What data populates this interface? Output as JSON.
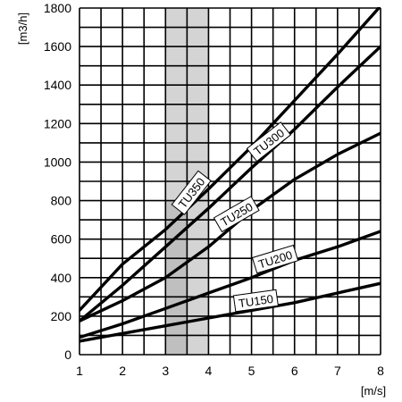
{
  "chart_data": {
    "type": "line",
    "title": "",
    "xlabel": "[m/s]",
    "ylabel": "[m3/h]",
    "xlim": [
      1,
      8
    ],
    "ylim": [
      0,
      1800
    ],
    "x_ticks": [
      "1",
      "2",
      "3",
      "4",
      "5",
      "6",
      "7",
      "8"
    ],
    "y_ticks": [
      "0",
      "200",
      "400",
      "600",
      "800",
      "1000",
      "1200",
      "1400",
      "1600",
      "1800"
    ],
    "grid": true,
    "highlight_band": {
      "from": 3,
      "to": 4,
      "split": 3.5
    },
    "series": [
      {
        "name": "TU350",
        "x": [
          1,
          2,
          3,
          4,
          5,
          6,
          7,
          8
        ],
        "y": [
          230,
          470,
          650,
          860,
          1080,
          1320,
          1560,
          1810
        ]
      },
      {
        "name": "TU300",
        "x": [
          1,
          2,
          3,
          4,
          5,
          6,
          7,
          8
        ],
        "y": [
          175,
          360,
          560,
          760,
          970,
          1170,
          1390,
          1600
        ]
      },
      {
        "name": "TU250",
        "x": [
          1,
          2,
          3,
          4,
          5,
          6,
          7,
          8
        ],
        "y": [
          175,
          280,
          400,
          560,
          750,
          910,
          1040,
          1150
        ]
      },
      {
        "name": "TU200",
        "x": [
          1,
          2,
          3,
          4,
          5,
          6,
          7,
          8
        ],
        "y": [
          90,
          160,
          240,
          320,
          400,
          490,
          560,
          640
        ]
      },
      {
        "name": "TU150",
        "x": [
          1,
          2,
          3,
          4,
          5,
          6,
          7,
          8
        ],
        "y": [
          70,
          110,
          150,
          190,
          230,
          270,
          320,
          370
        ]
      }
    ]
  }
}
